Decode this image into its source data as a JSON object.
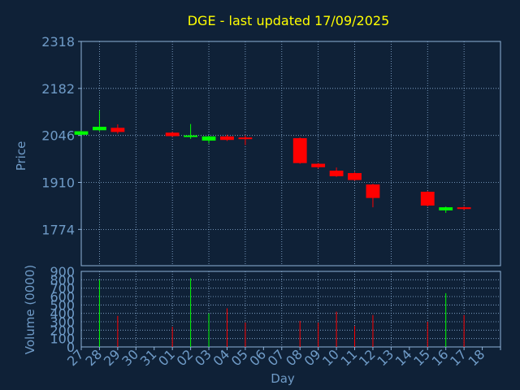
{
  "colors": {
    "background": "#0f2137",
    "axis": "#8fb3d9",
    "title": "#ffff00",
    "label": "#6f9bc7",
    "grid": "#8fb3d9",
    "up": "#00ff00",
    "down": "#ff0000"
  },
  "chart_data": [
    {
      "type": "candlestick",
      "title": "DGE - last updated 17/09/2025",
      "ylabel": "Price",
      "ylim": [
        1669,
        2318
      ],
      "yticks": [
        2318,
        2182,
        2046,
        1910,
        1774
      ],
      "grid": true,
      "categories": [
        "27",
        "28",
        "29",
        "30",
        "31",
        "01",
        "02",
        "03",
        "04",
        "05",
        "06",
        "07",
        "08",
        "09",
        "10",
        "11",
        "12",
        "13",
        "14",
        "15",
        "16",
        "17",
        "18"
      ],
      "candles": [
        {
          "day": "27",
          "open": 2048,
          "close": 2058,
          "high": 2060,
          "low": 2046
        },
        {
          "day": "28",
          "open": 2061,
          "close": 2071,
          "high": 2118,
          "low": 2058
        },
        {
          "day": "29",
          "open": 2068,
          "close": 2056,
          "high": 2078,
          "low": 2051
        },
        {
          "day": "01",
          "open": 2054,
          "close": 2044,
          "high": 2056,
          "low": 2042
        },
        {
          "day": "02",
          "open": 2042,
          "close": 2046,
          "high": 2079,
          "low": 2036
        },
        {
          "day": "03",
          "open": 2031,
          "close": 2043,
          "high": 2045,
          "low": 2023
        },
        {
          "day": "04",
          "open": 2043,
          "close": 2033,
          "high": 2048,
          "low": 2030
        },
        {
          "day": "05",
          "open": 2040,
          "close": 2037,
          "high": 2046,
          "low": 2018
        },
        {
          "day": "08",
          "open": 2038,
          "close": 1966,
          "high": 2040,
          "low": 1964
        },
        {
          "day": "09",
          "open": 1964,
          "close": 1954,
          "high": 1966,
          "low": 1950
        },
        {
          "day": "10",
          "open": 1944,
          "close": 1928,
          "high": 1953,
          "low": 1926
        },
        {
          "day": "11",
          "open": 1937,
          "close": 1917,
          "high": 1940,
          "low": 1915
        },
        {
          "day": "12",
          "open": 1904,
          "close": 1865,
          "high": 1906,
          "low": 1838
        },
        {
          "day": "15",
          "open": 1883,
          "close": 1843,
          "high": 1885,
          "low": 1840
        },
        {
          "day": "16",
          "open": 1829,
          "close": 1838,
          "high": 1840,
          "low": 1822
        },
        {
          "day": "17",
          "open": 1838,
          "close": 1833,
          "high": 1841,
          "low": 1830
        }
      ]
    },
    {
      "type": "bar",
      "ylabel": "Volume (0000)",
      "xlabel": "Day",
      "ylim": [
        0,
        900
      ],
      "yticks": [
        0,
        100,
        200,
        300,
        400,
        500,
        600,
        700,
        800,
        900
      ],
      "grid": true,
      "bars": [
        {
          "day": "28",
          "value": 800,
          "color": "up"
        },
        {
          "day": "29",
          "value": 370,
          "color": "down"
        },
        {
          "day": "01",
          "value": 240,
          "color": "down"
        },
        {
          "day": "02",
          "value": 820,
          "color": "up"
        },
        {
          "day": "03",
          "value": 400,
          "color": "up"
        },
        {
          "day": "04",
          "value": 460,
          "color": "down"
        },
        {
          "day": "05",
          "value": 290,
          "color": "down"
        },
        {
          "day": "08",
          "value": 310,
          "color": "down"
        },
        {
          "day": "09",
          "value": 290,
          "color": "down"
        },
        {
          "day": "10",
          "value": 420,
          "color": "down"
        },
        {
          "day": "11",
          "value": 250,
          "color": "down"
        },
        {
          "day": "12",
          "value": 380,
          "color": "down"
        },
        {
          "day": "15",
          "value": 300,
          "color": "down"
        },
        {
          "day": "16",
          "value": 640,
          "color": "up"
        },
        {
          "day": "17",
          "value": 380,
          "color": "down"
        }
      ]
    }
  ]
}
